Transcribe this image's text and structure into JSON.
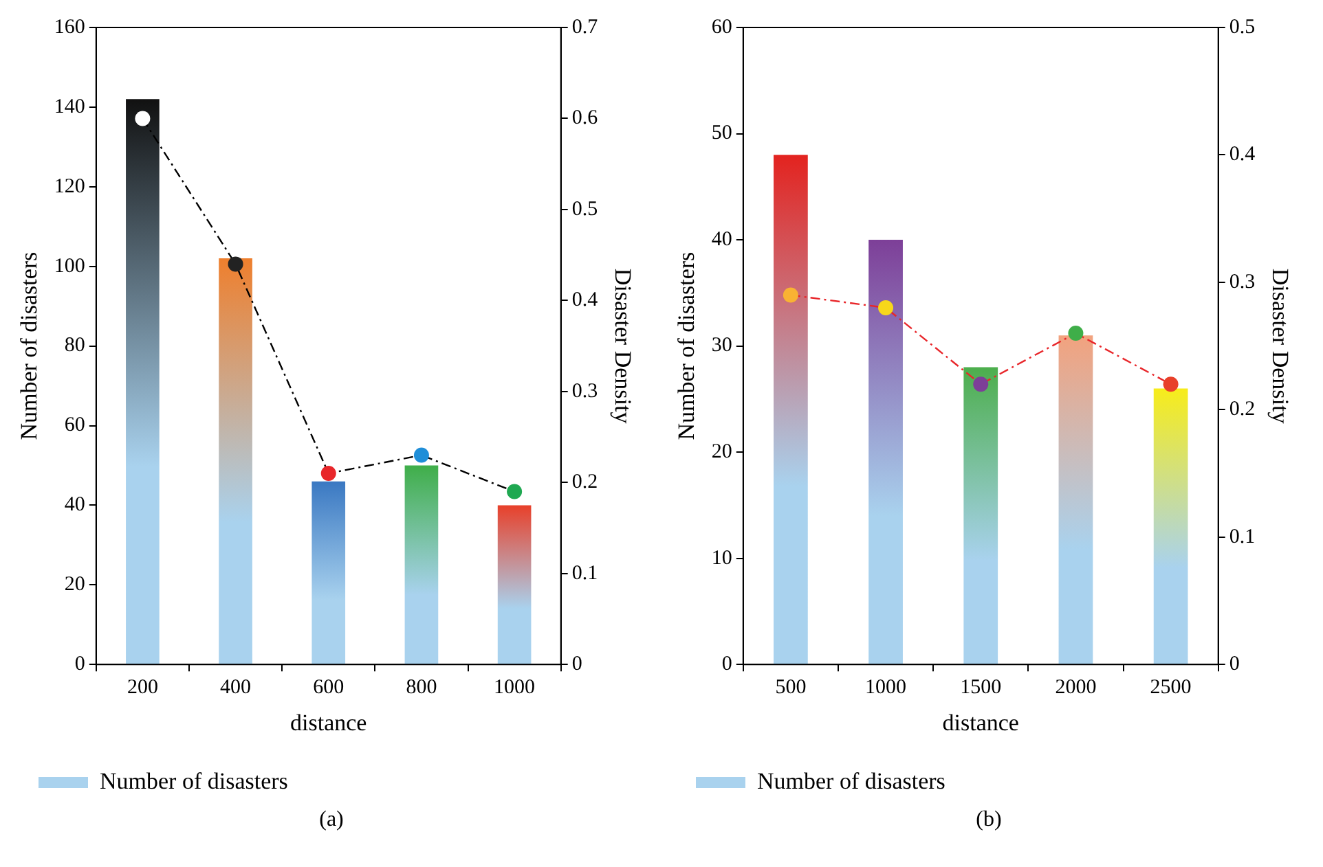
{
  "chart_data": [
    {
      "type": "bar",
      "categories": [
        "200",
        "400",
        "600",
        "800",
        "1000"
      ],
      "xlabel": "distance",
      "ylabel": "Number of disasters",
      "y2label": "Disaster Density",
      "ylim": [
        0,
        160
      ],
      "yticks": [
        0,
        20,
        40,
        60,
        80,
        100,
        120,
        140,
        160
      ],
      "y2lim": [
        0,
        0.7
      ],
      "y2ticks": [
        0,
        0.1,
        0.2,
        0.3,
        0.4,
        0.5,
        0.6,
        0.7
      ],
      "grid": false,
      "legend": "bottom",
      "annotations": [
        "(a)"
      ],
      "series": [
        {
          "name": "Number of disasters",
          "values": [
            142,
            102,
            46,
            50,
            40
          ],
          "colors": [
            "#111111",
            "#ee7f2d",
            "#3a78c2",
            "#3fae49",
            "#e8402a"
          ]
        },
        {
          "type": "line",
          "axis": "y2",
          "color": "#000000",
          "marker": "none",
          "line_style": "dashed",
          "values": [
            0.6,
            0.44,
            0.21,
            0.23,
            0.19
          ]
        },
        {
          "type": "scatter",
          "axis": "y2",
          "marker": "circle",
          "values": [
            0.6,
            0.44,
            0.21,
            0.23,
            0.19
          ],
          "colors": [
            "#ffffff",
            "#222222",
            "#e8262a",
            "#1f8ed8",
            "#1fa851"
          ]
        }
      ]
    },
    {
      "type": "bar",
      "categories": [
        "500",
        "1000",
        "1500",
        "2000",
        "2500"
      ],
      "xlabel": "distance",
      "ylabel": "Number of disasters",
      "y2label": "Disaster Density",
      "ylim": [
        0,
        60
      ],
      "yticks": [
        0,
        10,
        20,
        30,
        40,
        50,
        60
      ],
      "y2lim": [
        0,
        0.5
      ],
      "y2ticks": [
        0,
        0.1,
        0.2,
        0.3,
        0.4,
        0.5
      ],
      "grid": false,
      "legend": "bottom",
      "annotations": [
        "(b)"
      ],
      "series": [
        {
          "name": "Number of disasters",
          "values": [
            48,
            40,
            28,
            31,
            26
          ],
          "colors": [
            "#e3231f",
            "#7d3f98",
            "#4cae4c",
            "#f2a27e",
            "#f7ec1a"
          ]
        },
        {
          "type": "line",
          "axis": "y2",
          "color": "#e8262a",
          "marker": "none",
          "line_style": "dashed",
          "values": [
            0.29,
            0.28,
            0.22,
            0.26,
            0.22
          ]
        },
        {
          "type": "scatter",
          "axis": "y2",
          "marker": "circle",
          "values": [
            0.29,
            0.28,
            0.22,
            0.26,
            0.22
          ],
          "colors": [
            "#f9b233",
            "#f7d71a",
            "#7d3f98",
            "#3fae49",
            "#e8402a"
          ]
        }
      ]
    }
  ]
}
